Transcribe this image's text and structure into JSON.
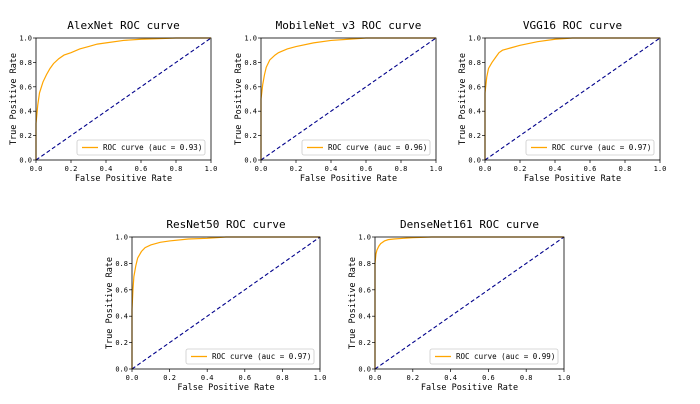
{
  "colors": {
    "roc": "#ffa500",
    "diagonal": "#00008b",
    "frame": "#000000"
  },
  "chart_data": [
    {
      "type": "line",
      "title": "AlexNet ROC curve",
      "xlabel": "False Positive Rate",
      "ylabel": "True Positive Rate",
      "xlim": [
        0,
        1
      ],
      "ylim": [
        0,
        1
      ],
      "xticks": [
        "0.0",
        "0.2",
        "0.4",
        "0.6",
        "0.8",
        "1.0"
      ],
      "yticks": [
        "0.0",
        "0.2",
        "0.4",
        "0.6",
        "0.8",
        "1.0"
      ],
      "grid": false,
      "legend": {
        "position": "lower-right",
        "label": "ROC curve (auc = 0.93)"
      },
      "series": [
        {
          "name": "ROC curve (auc = 0.93)",
          "style": "solid",
          "color": "#ffa500",
          "x": [
            0,
            0,
            0.01,
            0.02,
            0.04,
            0.06,
            0.08,
            0.1,
            0.13,
            0.16,
            0.2,
            0.25,
            0.3,
            0.35,
            0.4,
            0.5,
            0.6,
            0.7,
            0.8,
            0.9,
            1.0
          ],
          "y": [
            0,
            0.3,
            0.45,
            0.55,
            0.64,
            0.7,
            0.75,
            0.79,
            0.83,
            0.86,
            0.88,
            0.91,
            0.93,
            0.95,
            0.96,
            0.98,
            0.99,
            0.995,
            1.0,
            1.0,
            1.0
          ]
        },
        {
          "style": "dashed",
          "color": "#00008b",
          "x": [
            0,
            1
          ],
          "y": [
            0,
            1
          ]
        }
      ]
    },
    {
      "type": "line",
      "title": "MobileNet_v3 ROC curve",
      "xlabel": "False Positive Rate",
      "ylabel": "True Positive Rate",
      "xlim": [
        0,
        1
      ],
      "ylim": [
        0,
        1
      ],
      "xticks": [
        "0.0",
        "0.2",
        "0.4",
        "0.6",
        "0.8",
        "1.0"
      ],
      "yticks": [
        "0.0",
        "0.2",
        "0.4",
        "0.6",
        "0.8",
        "1.0"
      ],
      "grid": false,
      "legend": {
        "position": "lower-right",
        "label": "ROC curve (auc = 0.96)"
      },
      "series": [
        {
          "name": "ROC curve (auc = 0.96)",
          "style": "solid",
          "color": "#ffa500",
          "x": [
            0,
            0,
            0.01,
            0.02,
            0.03,
            0.05,
            0.08,
            0.1,
            0.15,
            0.2,
            0.3,
            0.4,
            0.5,
            0.6,
            0.8,
            1.0
          ],
          "y": [
            0,
            0.5,
            0.62,
            0.7,
            0.76,
            0.82,
            0.86,
            0.88,
            0.91,
            0.93,
            0.96,
            0.98,
            0.99,
            1.0,
            1.0,
            1.0
          ]
        },
        {
          "style": "dashed",
          "color": "#00008b",
          "x": [
            0,
            1
          ],
          "y": [
            0,
            1
          ]
        }
      ]
    },
    {
      "type": "line",
      "title": "VGG16 ROC curve",
      "xlabel": "False Positive Rate",
      "ylabel": "True Positive Rate",
      "xlim": [
        0,
        1
      ],
      "ylim": [
        0,
        1
      ],
      "xticks": [
        "0.0",
        "0.2",
        "0.4",
        "0.6",
        "0.8",
        "1.0"
      ],
      "yticks": [
        "0.0",
        "0.2",
        "0.4",
        "0.6",
        "0.8",
        "1.0"
      ],
      "grid": false,
      "legend": {
        "position": "lower-right",
        "label": "ROC curve (auc = 0.97)"
      },
      "series": [
        {
          "name": "ROC curve (auc = 0.97)",
          "style": "solid",
          "color": "#ffa500",
          "x": [
            0,
            0,
            0.01,
            0.02,
            0.04,
            0.06,
            0.08,
            0.1,
            0.15,
            0.2,
            0.3,
            0.4,
            0.5,
            0.6,
            0.8,
            1.0
          ],
          "y": [
            0,
            0.55,
            0.68,
            0.75,
            0.8,
            0.84,
            0.88,
            0.9,
            0.92,
            0.94,
            0.97,
            0.99,
            1.0,
            1.0,
            1.0,
            1.0
          ]
        },
        {
          "style": "dashed",
          "color": "#00008b",
          "x": [
            0,
            1
          ],
          "y": [
            0,
            1
          ]
        }
      ]
    },
    {
      "type": "line",
      "title": "ResNet50 ROC curve",
      "xlabel": "False Positive Rate",
      "ylabel": "True Positive Rate",
      "xlim": [
        0,
        1
      ],
      "ylim": [
        0,
        1
      ],
      "xticks": [
        "0.0",
        "0.2",
        "0.4",
        "0.6",
        "0.8",
        "1.0"
      ],
      "yticks": [
        "0.0",
        "0.2",
        "0.4",
        "0.6",
        "0.8",
        "1.0"
      ],
      "grid": false,
      "legend": {
        "position": "lower-right",
        "label": "ROC curve (auc = 0.97)"
      },
      "series": [
        {
          "name": "ROC curve (auc = 0.97)",
          "style": "solid",
          "color": "#ffa500",
          "x": [
            0,
            0,
            0.005,
            0.01,
            0.02,
            0.03,
            0.05,
            0.07,
            0.1,
            0.15,
            0.2,
            0.3,
            0.4,
            0.5,
            0.6,
            0.8,
            1.0
          ],
          "y": [
            0,
            0.45,
            0.6,
            0.7,
            0.78,
            0.84,
            0.89,
            0.92,
            0.94,
            0.96,
            0.97,
            0.985,
            0.99,
            1.0,
            1.0,
            1.0,
            1.0
          ]
        },
        {
          "style": "dashed",
          "color": "#00008b",
          "x": [
            0,
            1
          ],
          "y": [
            0,
            1
          ]
        }
      ]
    },
    {
      "type": "line",
      "title": "DenseNet161 ROC curve",
      "xlabel": "False Positive Rate",
      "ylabel": "True Positive Rate",
      "xlim": [
        0,
        1
      ],
      "ylim": [
        0,
        1
      ],
      "xticks": [
        "0.0",
        "0.2",
        "0.4",
        "0.6",
        "0.8",
        "1.0"
      ],
      "yticks": [
        "0.0",
        "0.2",
        "0.4",
        "0.6",
        "0.8",
        "1.0"
      ],
      "grid": false,
      "legend": {
        "position": "lower-right",
        "label": "ROC curve (auc = 0.99)"
      },
      "series": [
        {
          "name": "ROC curve (auc = 0.99)",
          "style": "solid",
          "color": "#ffa500",
          "x": [
            0,
            0,
            0.005,
            0.01,
            0.02,
            0.03,
            0.05,
            0.07,
            0.1,
            0.15,
            0.2,
            0.3,
            0.5,
            0.7,
            1.0
          ],
          "y": [
            0,
            0.8,
            0.87,
            0.9,
            0.93,
            0.95,
            0.97,
            0.98,
            0.985,
            0.99,
            0.995,
            1.0,
            1.0,
            1.0,
            1.0
          ]
        },
        {
          "style": "dashed",
          "color": "#00008b",
          "x": [
            0,
            1
          ],
          "y": [
            0,
            1
          ]
        }
      ]
    }
  ]
}
